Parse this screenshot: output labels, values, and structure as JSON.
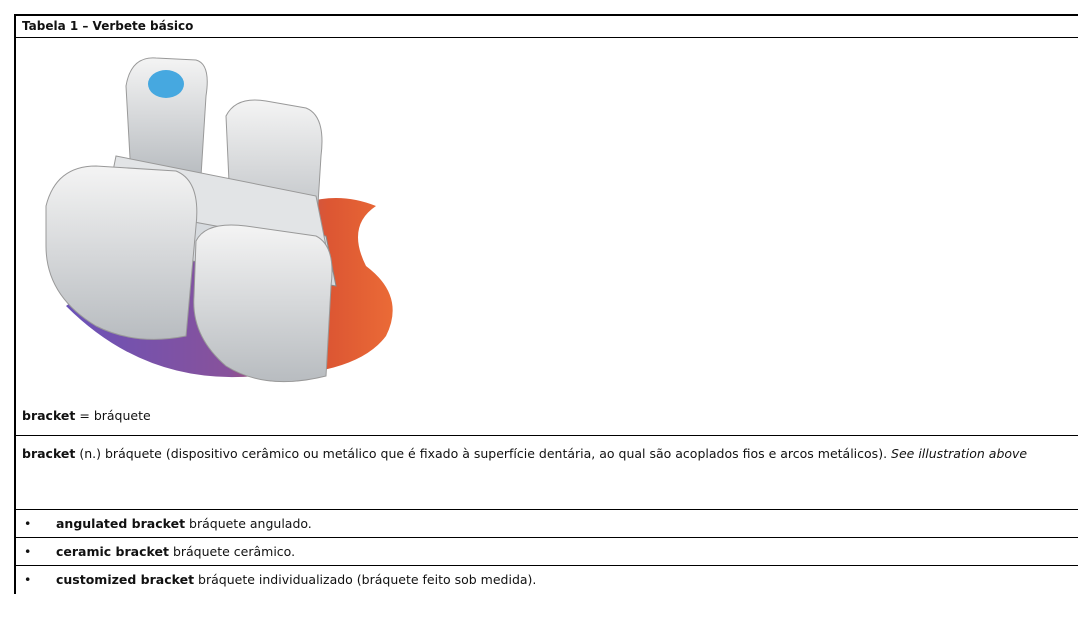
{
  "table": {
    "title": "Tabela 1 – Verbete básico",
    "caption": {
      "term": "bracket",
      "text": "= bráquete"
    },
    "definition": {
      "term": "bracket",
      "text": "(n.) bráquete (dispositivo cerâmico ou metálico que é fixado à superfície dentária, ao qual são acoplados fios e arcos metálicos).",
      "note": "See illustration above"
    },
    "rows": [
      {
        "bullet": "•",
        "term": "angulated bracket",
        "text": "bráquete angulado."
      },
      {
        "bullet": "•",
        "term": "ceramic bracket",
        "text": "bráquete cerâmico."
      },
      {
        "bullet": "•",
        "term": "customized bracket",
        "text": "bráquete individualizado (bráquete feito sob medida)."
      }
    ]
  }
}
